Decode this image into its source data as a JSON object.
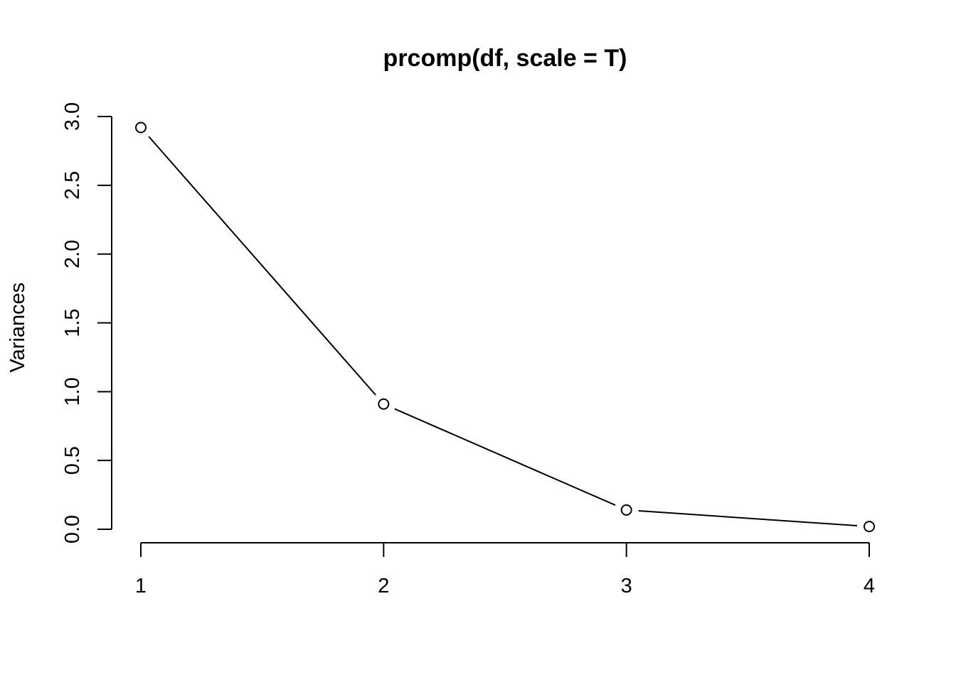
{
  "chart_data": {
    "type": "line",
    "title": "prcomp(df, scale = T)",
    "xlabel": "",
    "ylabel": "Variances",
    "x": [
      1,
      2,
      3,
      4
    ],
    "series": [
      {
        "values": [
          2.92,
          0.91,
          0.14,
          0.02
        ]
      }
    ],
    "xticks": [
      1,
      2,
      3,
      4
    ],
    "xtick_labels": [
      "1",
      "2",
      "3",
      "4"
    ],
    "yticks": [
      0.0,
      0.5,
      1.0,
      1.5,
      2.0,
      2.5,
      3.0
    ],
    "ytick_labels": [
      "0.0",
      "0.5",
      "1.0",
      "1.5",
      "2.0",
      "2.5",
      "3.0"
    ],
    "xlim": [
      1,
      4
    ],
    "ylim": [
      0,
      3
    ],
    "grid": false,
    "markers": "open-circle",
    "line_color": "#000000"
  }
}
